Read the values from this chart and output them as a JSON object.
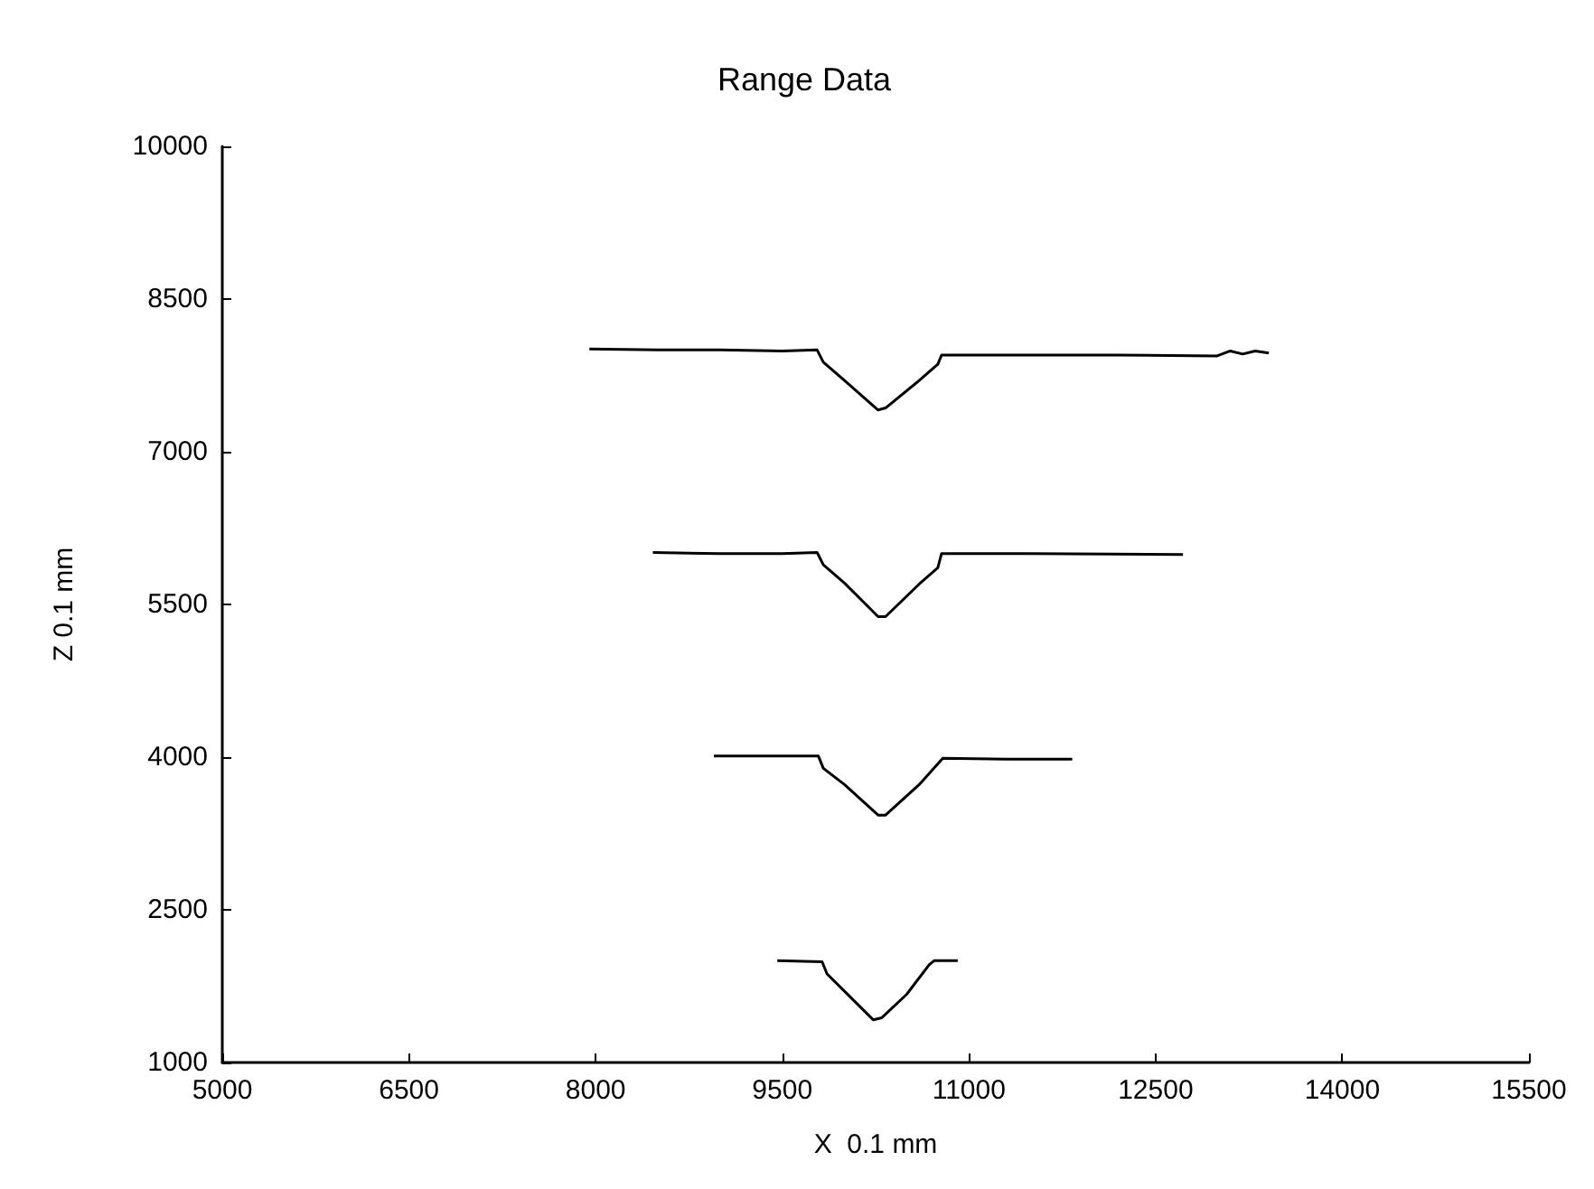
{
  "chart_data": {
    "type": "line",
    "title": "Range Data",
    "xlabel": "X  0.1 mm",
    "ylabel": "Z 0.1 mm",
    "xlim": [
      5000,
      15500
    ],
    "ylim": [
      1000,
      10000
    ],
    "xticks": [
      5000,
      6500,
      8000,
      9500,
      11000,
      12500,
      14000,
      15500
    ],
    "yticks": [
      1000,
      2500,
      4000,
      5500,
      7000,
      8500,
      10000
    ],
    "grid": false,
    "marker": "none",
    "line_style": "solid",
    "series": [
      {
        "color": "#000000",
        "x": [
          7950,
          8500,
          9000,
          9500,
          9780,
          9830,
          10000,
          10270,
          10330,
          10600,
          10750,
          10780,
          11500,
          12200,
          12990,
          13100,
          13200,
          13300,
          13410
        ],
        "values": [
          8010,
          8000,
          8000,
          7990,
          8000,
          7880,
          7700,
          7410,
          7430,
          7700,
          7860,
          7950,
          7950,
          7950,
          7940,
          7990,
          7960,
          7990,
          7970
        ]
      },
      {
        "color": "#000000",
        "x": [
          8460,
          9000,
          9500,
          9780,
          9830,
          10000,
          10270,
          10330,
          10600,
          10750,
          10780,
          11500,
          12720
        ],
        "values": [
          6010,
          6000,
          6000,
          6010,
          5890,
          5710,
          5380,
          5380,
          5700,
          5860,
          6000,
          6000,
          5990
        ]
      },
      {
        "color": "#000000",
        "x": [
          8950,
          9500,
          9790,
          9830,
          10000,
          10270,
          10330,
          10600,
          10790,
          11300,
          11830
        ],
        "values": [
          4010,
          4010,
          4010,
          3890,
          3730,
          3430,
          3430,
          3730,
          3990,
          3980,
          3980
        ]
      },
      {
        "color": "#000000",
        "x": [
          9460,
          9820,
          9860,
          10000,
          10230,
          10300,
          10500,
          10680,
          10720,
          10910
        ],
        "values": [
          2000,
          1990,
          1870,
          1700,
          1420,
          1440,
          1670,
          1960,
          2000,
          2000
        ]
      }
    ]
  }
}
